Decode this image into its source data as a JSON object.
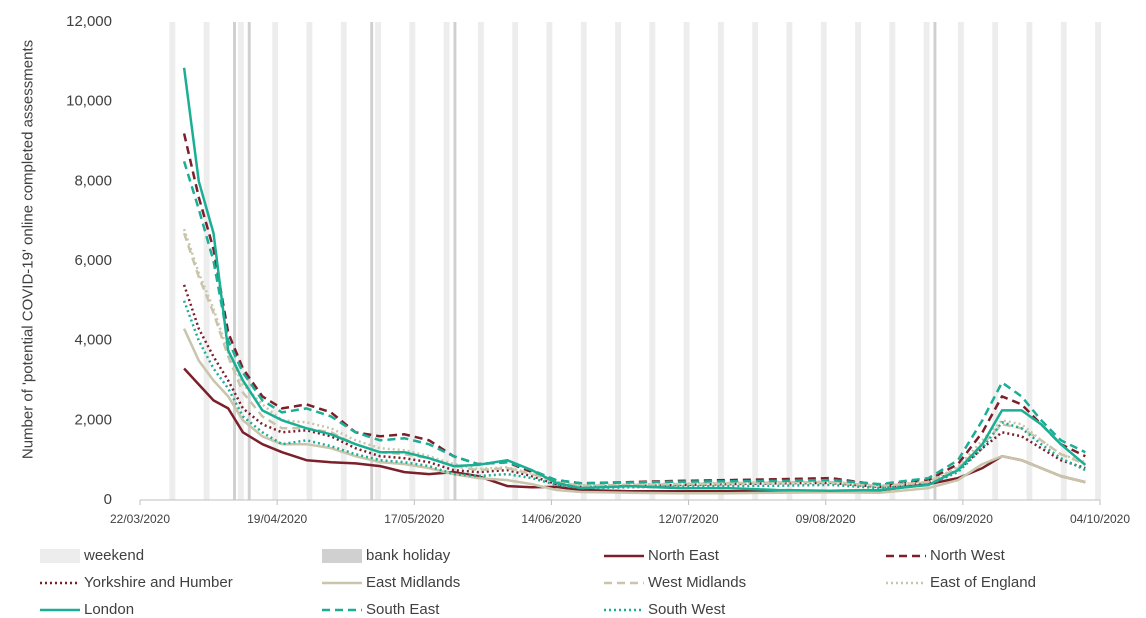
{
  "chart_data": {
    "type": "line",
    "y_label": "Number of 'potential COVID-19' online completed assessments",
    "x": [
      "2020-03-31",
      "2020-04-03",
      "2020-04-06",
      "2020-04-09",
      "2020-04-12",
      "2020-04-16",
      "2020-04-20",
      "2020-04-25",
      "2020-04-30",
      "2020-05-05",
      "2020-05-10",
      "2020-05-15",
      "2020-05-20",
      "2020-05-25",
      "2020-05-30",
      "2020-06-05",
      "2020-06-10",
      "2020-06-15",
      "2020-06-20",
      "2020-06-30",
      "2020-07-10",
      "2020-07-20",
      "2020-07-30",
      "2020-08-10",
      "2020-08-20",
      "2020-08-30",
      "2020-09-05",
      "2020-09-10",
      "2020-09-14",
      "2020-09-18",
      "2020-09-22",
      "2020-09-26",
      "2020-10-01"
    ],
    "xlim": [
      "2020-03-22",
      "2020-10-04"
    ],
    "xticks": [
      {
        "value": "2020-03-22",
        "label": "22/03/2020"
      },
      {
        "value": "2020-04-19",
        "label": "19/04/2020"
      },
      {
        "value": "2020-05-17",
        "label": "17/05/2020"
      },
      {
        "value": "2020-06-14",
        "label": "14/06/2020"
      },
      {
        "value": "2020-07-12",
        "label": "12/07/2020"
      },
      {
        "value": "2020-08-09",
        "label": "09/08/2020"
      },
      {
        "value": "2020-09-06",
        "label": "06/09/2020"
      },
      {
        "value": "2020-10-04",
        "label": "04/10/2020"
      }
    ],
    "ylim": [
      0,
      12000
    ],
    "yticks": [
      0,
      {
        "value": 2000,
        "label": "2,000"
      },
      {
        "value": 4000,
        "label": "4,000"
      },
      {
        "value": 6000,
        "label": "6,000"
      },
      {
        "value": 8000,
        "label": "8,000"
      },
      {
        "value": 10000,
        "label": "10,000"
      },
      {
        "value": 12000,
        "label": "12,000"
      }
    ],
    "shading": [
      {
        "name": "weekend",
        "color": "#ededed",
        "days": 2,
        "dates": [
          "2020-03-28",
          "2020-04-04",
          "2020-04-11",
          "2020-04-18",
          "2020-04-25",
          "2020-05-02",
          "2020-05-09",
          "2020-05-16",
          "2020-05-23",
          "2020-05-30",
          "2020-06-06",
          "2020-06-13",
          "2020-06-20",
          "2020-06-27",
          "2020-07-04",
          "2020-07-11",
          "2020-07-18",
          "2020-07-25",
          "2020-08-01",
          "2020-08-08",
          "2020-08-15",
          "2020-08-22",
          "2020-08-29",
          "2020-09-05",
          "2020-09-12",
          "2020-09-19",
          "2020-09-26",
          "2020-10-03"
        ]
      },
      {
        "name": "bank holiday",
        "color": "#d0d0d0",
        "days": 1,
        "dates": [
          "2020-04-10",
          "2020-04-13",
          "2020-05-08",
          "2020-05-25",
          "2020-08-31"
        ]
      }
    ],
    "series": [
      {
        "name": "North East",
        "color": "#7b1f2a",
        "style": "solid",
        "values": [
          3300,
          2900,
          2500,
          2300,
          1700,
          1400,
          1200,
          1000,
          950,
          920,
          850,
          700,
          650,
          700,
          600,
          350,
          320,
          330,
          250,
          220,
          220,
          220,
          220,
          230,
          240,
          400,
          550,
          800,
          1100,
          1000,
          800,
          600,
          450
        ]
      },
      {
        "name": "North West",
        "color": "#7b1f2a",
        "style": "dash",
        "values": [
          9200,
          7600,
          6300,
          4200,
          3300,
          2600,
          2300,
          2400,
          2200,
          1700,
          1600,
          1650,
          1500,
          1100,
          900,
          950,
          700,
          500,
          420,
          450,
          480,
          500,
          520,
          550,
          380,
          500,
          900,
          1700,
          2600,
          2400,
          1900,
          1400,
          1100
        ]
      },
      {
        "name": "Yorkshire and Humber",
        "color": "#7b1f2a",
        "style": "dot",
        "values": [
          5400,
          4300,
          3600,
          3000,
          2300,
          1900,
          1700,
          1750,
          1600,
          1300,
          1100,
          1050,
          950,
          750,
          700,
          750,
          600,
          400,
          330,
          350,
          380,
          400,
          420,
          430,
          330,
          420,
          750,
          1300,
          1700,
          1600,
          1300,
          1000,
          800
        ]
      },
      {
        "name": "East Midlands",
        "color": "#c9c5ab",
        "style": "solid",
        "values": [
          4300,
          3500,
          3000,
          2600,
          2000,
          1600,
          1400,
          1400,
          1300,
          1100,
          950,
          900,
          800,
          650,
          550,
          500,
          400,
          250,
          200,
          180,
          170,
          170,
          180,
          190,
          180,
          300,
          500,
          900,
          1100,
          1000,
          800,
          600,
          450
        ]
      },
      {
        "name": "West Midlands",
        "color": "#c9c5ab",
        "style": "dash",
        "values": [
          6700,
          5600,
          4700,
          3600,
          2700,
          2100,
          1800,
          1800,
          1700,
          1400,
          1200,
          1150,
          1050,
          850,
          750,
          800,
          650,
          450,
          360,
          380,
          400,
          420,
          440,
          450,
          350,
          450,
          800,
          1400,
          1900,
          1800,
          1500,
          1150,
          900
        ]
      },
      {
        "name": "East of England",
        "color": "#c9c5ab",
        "style": "dot",
        "values": [
          6800,
          5700,
          4800,
          3700,
          2900,
          2400,
          2000,
          1950,
          1800,
          1500,
          1300,
          1250,
          1100,
          900,
          780,
          820,
          660,
          460,
          370,
          390,
          410,
          430,
          450,
          460,
          360,
          460,
          830,
          1500,
          2000,
          1900,
          1500,
          1150,
          950
        ]
      },
      {
        "name": "London",
        "color": "#1aae95",
        "style": "solid",
        "values": [
          10850,
          8000,
          6700,
          3750,
          3000,
          2250,
          2000,
          1800,
          1650,
          1400,
          1200,
          1200,
          1050,
          850,
          880,
          1000,
          750,
          430,
          300,
          350,
          300,
          300,
          250,
          230,
          250,
          380,
          750,
          1400,
          2250,
          2250,
          1900,
          1400,
          880
        ]
      },
      {
        "name": "South East",
        "color": "#1aae95",
        "style": "dash",
        "values": [
          8500,
          7300,
          6000,
          4000,
          3200,
          2500,
          2200,
          2300,
          2100,
          1700,
          1500,
          1550,
          1400,
          1100,
          900,
          950,
          750,
          500,
          420,
          440,
          460,
          470,
          480,
          500,
          400,
          550,
          1000,
          2000,
          2950,
          2600,
          2000,
          1500,
          1200
        ]
      },
      {
        "name": "South West",
        "color": "#1aae95",
        "style": "dot",
        "values": [
          5000,
          4000,
          3300,
          2800,
          2100,
          1700,
          1400,
          1500,
          1350,
          1150,
          1000,
          950,
          850,
          650,
          600,
          650,
          550,
          380,
          300,
          320,
          340,
          350,
          360,
          380,
          300,
          380,
          700,
          1300,
          1950,
          1800,
          1400,
          1050,
          750
        ]
      }
    ]
  }
}
